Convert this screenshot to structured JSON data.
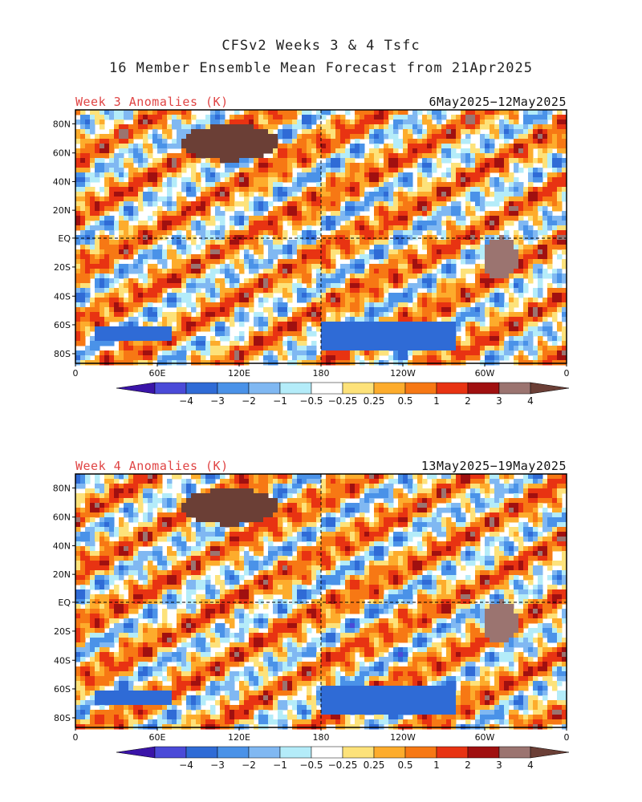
{
  "header": {
    "title_line1": "CFSv2 Weeks 3 & 4 Tsfc",
    "title_line2": "16 Member Ensemble Mean Forecast from 21Apr2025"
  },
  "panels": [
    {
      "label": "Week 3 Anomalies (K)",
      "date_range": "6May2025−12May2025"
    },
    {
      "label": "Week 4 Anomalies (K)",
      "date_range": "13May2025−19May2025"
    }
  ],
  "axes": {
    "lat_ticks": [
      "80N",
      "60N",
      "40N",
      "20N",
      "EQ",
      "20S",
      "40S",
      "60S",
      "80S"
    ],
    "lon_ticks": [
      "0",
      "60E",
      "120E",
      "180",
      "120W",
      "60W",
      "0"
    ]
  },
  "colorbar": {
    "labels": [
      "−4",
      "−3",
      "−2",
      "−1",
      "−0.5",
      "−0.25",
      "0.25",
      "0.5",
      "1",
      "2",
      "3",
      "4"
    ],
    "colors": [
      "#3a14a8",
      "#4a4ad8",
      "#2f6bd6",
      "#4a92e8",
      "#80b8f2",
      "#b4ecf9",
      "#ffffff",
      "#fde27a",
      "#fdac2c",
      "#f77814",
      "#e83312",
      "#a01010",
      "#9b7470",
      "#6b3f36"
    ]
  }
}
